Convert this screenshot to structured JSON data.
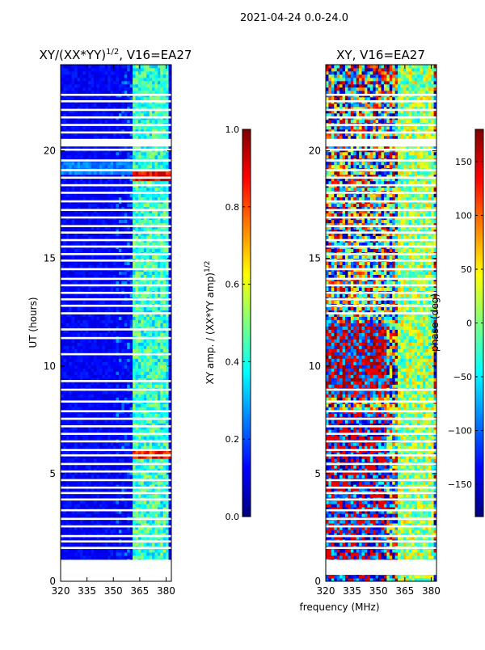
{
  "figure": {
    "suptitle": "2021-04-24 0.0-24.0",
    "xlabel": "frequency (MHz)"
  },
  "colormap": [
    "#00007f",
    "#0000ff",
    "#007fff",
    "#00ffff",
    "#7fff7f",
    "#ffff00",
    "#ff7f00",
    "#ff0000",
    "#7f0000"
  ],
  "chart_data": [
    {
      "type": "heatmap",
      "panel": "left",
      "title_prefix": "XY/(XX*YY)",
      "title_exp": "1/2",
      "title_suffix": ", V16=EA27",
      "xlabel": "",
      "ylabel": "UT (hours)",
      "xlim": [
        320,
        383
      ],
      "ylim": [
        0,
        24
      ],
      "x_ticks": [
        "320",
        "335",
        "350",
        "365",
        "380"
      ],
      "y_ticks": [
        "0",
        "5",
        "10",
        "15",
        "20"
      ],
      "data_start_hour": 0.3,
      "data_end_hour": 24.0,
      "flagged_hours": [
        0.35,
        0.95,
        1.55,
        1.85,
        2.1,
        2.55,
        2.9,
        3.3,
        3.8,
        4.1,
        4.35,
        4.7,
        5.1,
        5.45,
        5.85,
        6.1,
        6.5,
        6.85,
        7.2,
        7.55,
        7.9,
        8.35,
        8.9,
        9.3,
        10.55,
        11.3,
        11.7,
        12.45,
        12.8,
        13.1,
        13.4,
        13.75,
        14.05,
        14.5,
        14.9,
        15.2,
        15.55,
        15.85,
        16.2,
        16.5,
        16.9,
        17.25,
        17.65,
        18.05,
        18.4,
        18.75,
        19.1,
        19.55,
        20.05,
        20.5,
        20.85,
        21.2,
        21.55,
        21.9,
        22.3,
        22.6
      ],
      "flagged_bands": [
        [
          0.35,
          0.95
        ],
        [
          20.2,
          20.55
        ]
      ],
      "colorbar": {
        "label_prefix": "XY amp. / (XX*YY amp)",
        "label_exp": "1/2",
        "range": [
          0.0,
          1.0
        ],
        "ticks": [
          "0.0",
          "0.2",
          "0.4",
          "0.6",
          "0.8",
          "1.0"
        ]
      }
    },
    {
      "type": "heatmap",
      "panel": "right",
      "title": "XY, V16=EA27",
      "xlabel": "",
      "ylabel": "",
      "xlim": [
        320,
        383
      ],
      "ylim": [
        0,
        24
      ],
      "x_ticks": [
        "320",
        "335",
        "350",
        "365",
        "380"
      ],
      "y_ticks": [
        "0",
        "5",
        "10",
        "15",
        "20"
      ],
      "data_start_hour": 0.0,
      "data_end_hour": 24.0,
      "flagged_hours": [
        0.35,
        0.95,
        1.55,
        1.85,
        2.1,
        2.55,
        2.9,
        3.3,
        3.8,
        4.1,
        4.35,
        4.7,
        5.1,
        5.45,
        5.85,
        6.1,
        6.5,
        6.85,
        7.2,
        7.55,
        7.9,
        8.35,
        8.9,
        12.45,
        12.8,
        13.1,
        13.4,
        13.75,
        14.05,
        14.5,
        14.9,
        15.2,
        15.55,
        15.85,
        16.2,
        16.5,
        16.9,
        17.25,
        17.65,
        18.05,
        18.4,
        18.75,
        19.1,
        19.55,
        20.05,
        20.5,
        20.85,
        21.2,
        21.55,
        21.9,
        22.3,
        22.6
      ],
      "flagged_bands": [
        [
          0.3,
          0.95
        ],
        [
          20.2,
          20.55
        ]
      ],
      "colorbar": {
        "label": "phase (deg)",
        "range": [
          -180,
          180
        ],
        "ticks": [
          "−150",
          "−100",
          "−50",
          "0",
          "50",
          "100",
          "150"
        ],
        "tick_values": [
          -150,
          -100,
          -50,
          0,
          50,
          100,
          150
        ]
      }
    }
  ]
}
